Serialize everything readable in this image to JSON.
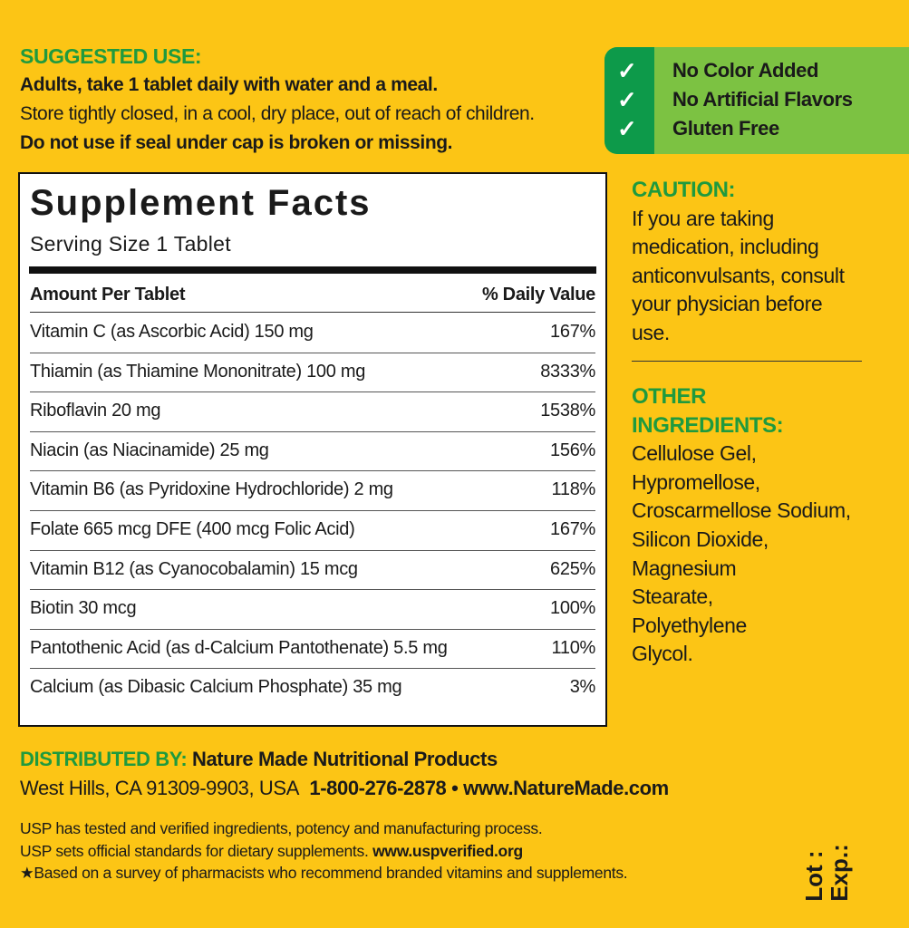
{
  "suggested_use": {
    "heading": "SUGGESTED USE:",
    "line1": "Adults, take 1 tablet daily with water and a meal.",
    "line2": "Store tightly closed, in a cool, dry place, out of reach of children.",
    "line3": "Do not use if seal under cap is broken or missing."
  },
  "badge": {
    "icon": "checkmark-icon",
    "items": [
      "No Color Added",
      "No Artificial Flavors",
      "Gluten Free"
    ],
    "colors": {
      "light": "#7cc242",
      "dark": "#0d9a4a"
    }
  },
  "facts": {
    "title": "Supplement Facts",
    "serving": "Serving Size 1 Tablet",
    "header_left": "Amount Per Tablet",
    "header_right": "% Daily Value",
    "rows": [
      {
        "name": "Vitamin C (as Ascorbic Acid) 150 mg",
        "dv": "167%"
      },
      {
        "name": "Thiamin (as Thiamine Mononitrate) 100 mg",
        "dv": "8333%"
      },
      {
        "name": "Riboflavin 20 mg",
        "dv": "1538%"
      },
      {
        "name": "Niacin (as Niacinamide) 25 mg",
        "dv": "156%"
      },
      {
        "name": "Vitamin B6 (as Pyridoxine Hydrochloride) 2 mg",
        "dv": "118%"
      },
      {
        "name": "Folate 665 mcg DFE (400 mcg Folic Acid)",
        "dv": "167%"
      },
      {
        "name": "Vitamin B12 (as Cyanocobalamin) 15 mcg",
        "dv": "625%"
      },
      {
        "name": "Biotin 30 mcg",
        "dv": "100%"
      },
      {
        "name": "Pantothenic Acid (as d-Calcium Pantothenate) 5.5 mg",
        "dv": "110%"
      },
      {
        "name": "Calcium (as Dibasic Calcium Phosphate) 35 mg",
        "dv": "3%"
      }
    ]
  },
  "caution": {
    "heading": "CAUTION:",
    "lines": [
      "If you are taking",
      "medication, including",
      "anticonvulsants, consult",
      "your physician before",
      "use."
    ]
  },
  "other": {
    "heading1": "OTHER",
    "heading2": "INGREDIENTS:",
    "lines": [
      "Cellulose Gel,",
      "Hypromellose,",
      "Croscarmellose Sodium,",
      "Silicon Dioxide,",
      "Magnesium",
      "Stearate,",
      "Polyethylene",
      "Glycol."
    ]
  },
  "distributor": {
    "label": "DISTRIBUTED BY:",
    "name": "Nature Made Nutritional Products",
    "address": "West Hills, CA 91309-9903, USA",
    "phone": "1-800-276-2878",
    "bullet": "•",
    "website": "www.NatureMade.com"
  },
  "usp": {
    "line1": "USP has tested and verified ingredients, potency and manufacturing process.",
    "line2": "USP sets official standards for dietary supplements.",
    "line2_link": "www.uspverified.org",
    "line3": "★Based on a survey of pharmacists who recommend branded vitamins and supplements."
  },
  "lot": {
    "lot_label": "Lot :",
    "exp_label": "Exp.:"
  },
  "colors": {
    "background": "#fcc515",
    "green": "#1f9a3e"
  }
}
